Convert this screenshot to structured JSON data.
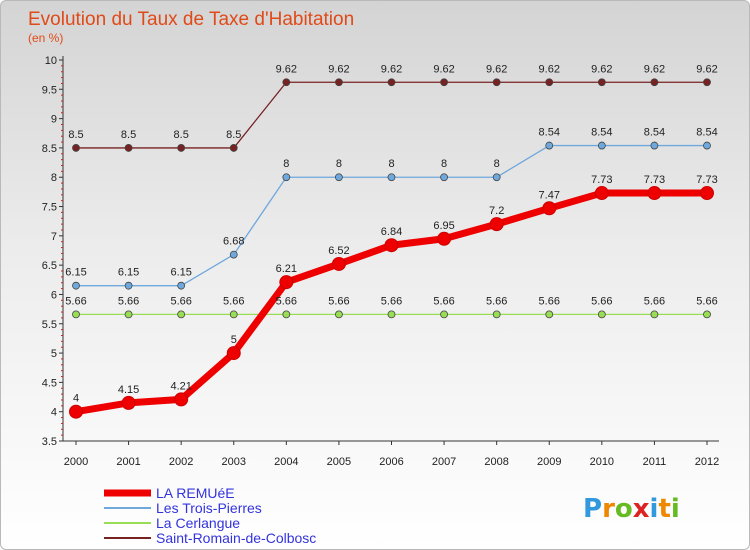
{
  "chart_data": {
    "type": "line",
    "title": "Evolution du Taux de Taxe d'Habitation",
    "subtitle": "(en %)",
    "x": [
      "2000",
      "2001",
      "2002",
      "2003",
      "2004",
      "2005",
      "2006",
      "2007",
      "2008",
      "2009",
      "2010",
      "2011",
      "2012"
    ],
    "ylim": [
      3.5,
      10
    ],
    "yticks": [
      "3.5",
      "4",
      "4.5",
      "5",
      "5.5",
      "6",
      "6.5",
      "7",
      "7.5",
      "8",
      "8.5",
      "9",
      "9.5",
      "10"
    ],
    "grid": false,
    "legend_position": "bottom-left",
    "series": [
      {
        "name": "LA REMUéE",
        "color": "#ee0000",
        "values": [
          4,
          4.15,
          4.21,
          5,
          6.21,
          6.52,
          6.84,
          6.95,
          7.2,
          7.47,
          7.73,
          7.73,
          7.73
        ],
        "labels": [
          "4",
          "4.15",
          "4.21",
          "5",
          "6.21",
          "6.52",
          "6.84",
          "6.95",
          "7.2",
          "7.47",
          "7.73",
          "7.73",
          "7.73"
        ]
      },
      {
        "name": "Les Trois-Pierres",
        "color": "#6fa8dc",
        "values": [
          6.15,
          6.15,
          6.15,
          6.68,
          8,
          8,
          8,
          8,
          8,
          8.54,
          8.54,
          8.54,
          8.54
        ],
        "labels": [
          "6.15",
          "6.15",
          "6.15",
          "6.68",
          "8",
          "8",
          "8",
          "8",
          "8",
          "8.54",
          "8.54",
          "8.54",
          "8.54"
        ]
      },
      {
        "name": "La Cerlangue",
        "color": "#99dd55",
        "values": [
          5.66,
          5.66,
          5.66,
          5.66,
          5.66,
          5.66,
          5.66,
          5.66,
          5.66,
          5.66,
          5.66,
          5.66,
          5.66
        ],
        "labels": [
          "5.66",
          "5.66",
          "5.66",
          "5.66",
          "5.66",
          "5.66",
          "5.66",
          "5.66",
          "5.66",
          "5.66",
          "5.66",
          "5.66",
          "5.66"
        ]
      },
      {
        "name": "Saint-Romain-de-Colbosc",
        "color": "#772222",
        "values": [
          8.5,
          8.5,
          8.5,
          8.5,
          9.62,
          9.62,
          9.62,
          9.62,
          9.62,
          9.62,
          9.62,
          9.62,
          9.62
        ],
        "labels": [
          "8.5",
          "8.5",
          "8.5",
          "8.5",
          "9.62",
          "9.62",
          "9.62",
          "9.62",
          "9.62",
          "9.62",
          "9.62",
          "9.62",
          "9.62"
        ]
      }
    ]
  },
  "brand": {
    "letters": [
      "P",
      "r",
      "o",
      "x",
      "i",
      "t",
      "i"
    ],
    "colors": [
      "#3399dd",
      "#ee8800",
      "#66bb22",
      "#dd2222",
      "#3399dd",
      "#ee8800",
      "#66bb22"
    ]
  }
}
